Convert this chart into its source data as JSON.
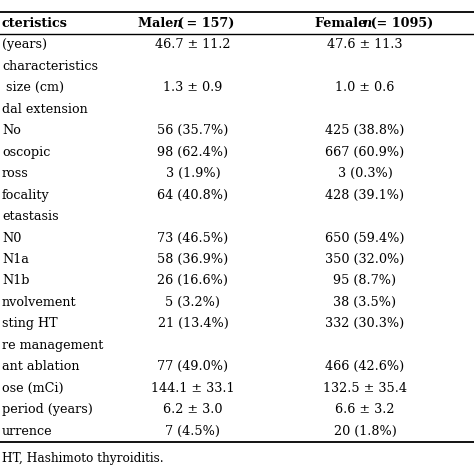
{
  "headers_col0": "cteristics",
  "headers_col1_pre": "Male (",
  "headers_col1_n": "n",
  "headers_col1_post": " = 157)",
  "headers_col2_pre": "Female (",
  "headers_col2_n": "n",
  "headers_col2_post": " = 1095)",
  "rows": [
    {
      "label": "(years)",
      "male": "46.7 ± 11.2",
      "female": "47.6 ± 11.3",
      "section": false
    },
    {
      "label": "characteristics",
      "male": "",
      "female": "",
      "section": true
    },
    {
      "label": " size (cm)",
      "male": "1.3 ± 0.9",
      "female": "1.0 ± 0.6",
      "section": false
    },
    {
      "label": "dal extension",
      "male": "",
      "female": "",
      "section": true
    },
    {
      "label": "No",
      "male": "56 (35.7%)",
      "female": "425 (38.8%)",
      "section": false
    },
    {
      "label": "oscopic",
      "male": "98 (62.4%)",
      "female": "667 (60.9%)",
      "section": false
    },
    {
      "label": "ross",
      "male": "3 (1.9%)",
      "female": "3 (0.3%)",
      "section": false
    },
    {
      "label": "focality",
      "male": "64 (40.8%)",
      "female": "428 (39.1%)",
      "section": false
    },
    {
      "label": "etastasis",
      "male": "",
      "female": "",
      "section": true
    },
    {
      "label": "N0",
      "male": "73 (46.5%)",
      "female": "650 (59.4%)",
      "section": false
    },
    {
      "label": "N1a",
      "male": "58 (36.9%)",
      "female": "350 (32.0%)",
      "section": false
    },
    {
      "label": "N1b",
      "male": "26 (16.6%)",
      "female": "95 (8.7%)",
      "section": false
    },
    {
      "label": "nvolvement",
      "male": "5 (3.2%)",
      "female": "38 (3.5%)",
      "section": false
    },
    {
      "label": "sting HT",
      "male": "21 (13.4%)",
      "female": "332 (30.3%)",
      "section": false
    },
    {
      "label": "re management",
      "male": "",
      "female": "",
      "section": true
    },
    {
      "label": "ant ablation",
      "male": "77 (49.0%)",
      "female": "466 (42.6%)",
      "section": false
    },
    {
      "label": "ose (mCi)",
      "male": "144.1 ± 33.1",
      "female": "132.5 ± 35.4",
      "section": false
    },
    {
      "label": "period (years)",
      "male": "6.2 ± 3.0",
      "female": "6.6 ± 3.2",
      "section": false
    },
    {
      "label": "urrence",
      "male": "7 (4.5%)",
      "female": "20 (1.8%)",
      "section": false
    }
  ],
  "footer": "HT, Hashimoto thyroiditis.",
  "bg_color": "#ffffff",
  "text_color": "#000000",
  "line_color": "#000000",
  "fontsize": 9.2,
  "header_fontsize": 9.2
}
